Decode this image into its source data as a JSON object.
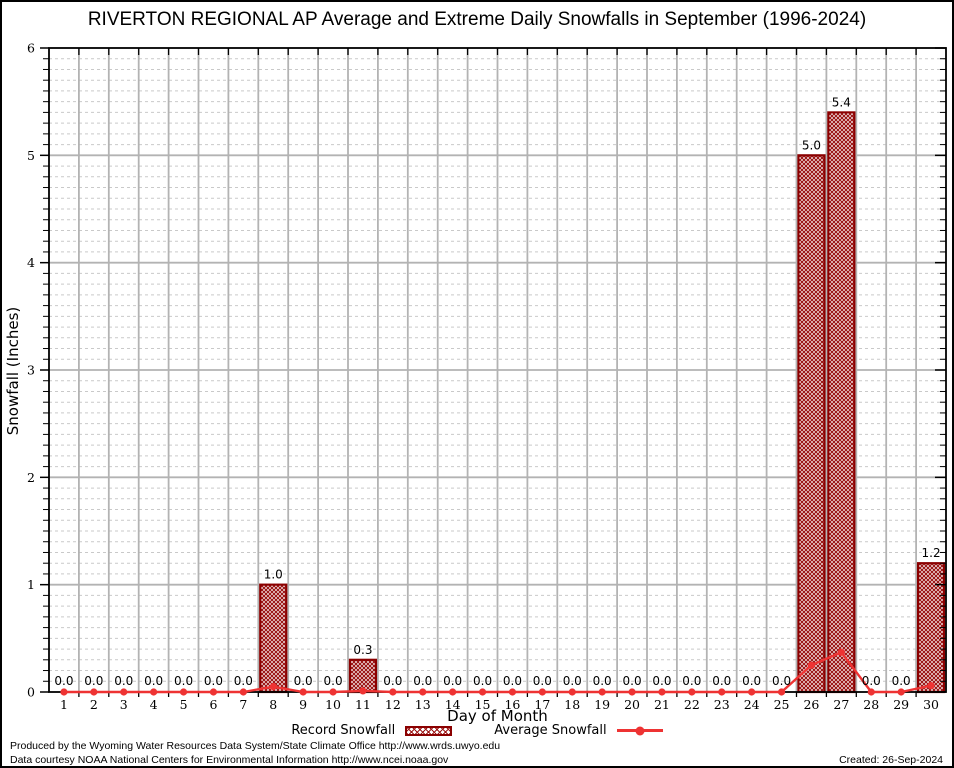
{
  "title": "RIVERTON REGIONAL AP Average and Extreme Daily Snowfalls in September (1996-2024)",
  "chart_data": {
    "type": "bar",
    "title": "RIVERTON REGIONAL AP Average and Extreme Daily Snowfalls in September (1996-2024)",
    "xlabel": "Day of Month",
    "ylabel": "Snowfall (Inches)",
    "ylim": [
      0,
      6
    ],
    "yticks": [
      0,
      1,
      2,
      3,
      4,
      5,
      6
    ],
    "y_minor_step": 0.1,
    "grid": "on",
    "legend_position": "bottom-center",
    "categories": [
      1,
      2,
      3,
      4,
      5,
      6,
      7,
      8,
      9,
      10,
      11,
      12,
      13,
      14,
      15,
      16,
      17,
      18,
      19,
      20,
      21,
      22,
      23,
      24,
      25,
      26,
      27,
      28,
      29,
      30
    ],
    "series": [
      {
        "name": "Record Snowfall",
        "type": "bar",
        "values": [
          0.0,
          0.0,
          0.0,
          0.0,
          0.0,
          0.0,
          0.0,
          1.0,
          0.0,
          0.0,
          0.3,
          0.0,
          0.0,
          0.0,
          0.0,
          0.0,
          0.0,
          0.0,
          0.0,
          0.0,
          0.0,
          0.0,
          0.0,
          0.0,
          0.0,
          5.0,
          5.4,
          0.0,
          0.0,
          1.2
        ],
        "data_labels": [
          "0.0",
          "0.0",
          "0.0",
          "0.0",
          "0.0",
          "0.0",
          "0.0",
          "1.0",
          "0.0",
          "0.0",
          "0.3",
          "0.0",
          "0.0",
          "0.0",
          "0.0",
          "0.0",
          "0.0",
          "0.0",
          "0.0",
          "0.0",
          "0.0",
          "0.0",
          "0.0",
          "0.0",
          "0.0",
          "5.0",
          "5.4",
          "0.0",
          "0.0",
          "1.2"
        ]
      },
      {
        "name": "Average Snowfall",
        "type": "line",
        "values": [
          0,
          0,
          0,
          0,
          0,
          0,
          0,
          0.05,
          0,
          0,
          0.01,
          0,
          0,
          0,
          0,
          0,
          0,
          0,
          0,
          0,
          0,
          0,
          0,
          0,
          0,
          0.25,
          0.37,
          0,
          0,
          0.06
        ]
      }
    ]
  },
  "legend": {
    "record_label": "Record Snowfall",
    "average_label": "Average Snowfall"
  },
  "footer": {
    "line1": "Produced by the Wyoming Water Resources Data System/State Climate Office http://www.wrds.uwyo.edu",
    "line2": "Data courtesy NOAA National Centers for Environmental Information http://www.ncei.noaa.gov",
    "created": "Created: 26-Sep-2024"
  },
  "colors": {
    "bar_border": "#8b0000",
    "bar_hatch": "#9b1616",
    "line": "#ee3333",
    "grid_major": "#b3b3b3",
    "grid_minor": "#c9c9c9",
    "axis": "#000000",
    "text": "#000000"
  }
}
